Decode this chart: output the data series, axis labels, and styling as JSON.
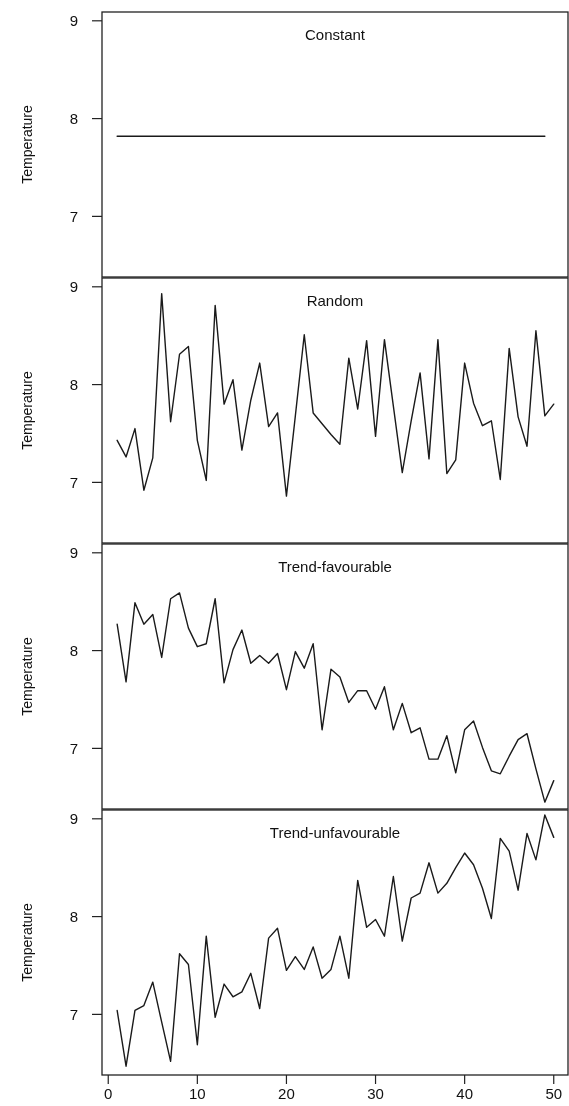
{
  "chart_data": [
    {
      "type": "line",
      "title": "Constant",
      "ylabel": "Temperature",
      "x": [
        1,
        49
      ],
      "series": [
        {
          "color": "#1a1a1a",
          "values": [
            7.82,
            7.82
          ]
        }
      ],
      "xlim": [
        -0.7,
        51.6
      ],
      "ylim": [
        6.38,
        9.09
      ],
      "yticks": [
        7,
        8,
        9
      ],
      "tick_labels": "y"
    },
    {
      "type": "line",
      "title": "Random",
      "ylabel": "Temperature",
      "x": [
        1,
        2,
        3,
        4,
        5,
        6,
        7,
        8,
        9,
        10,
        11,
        12,
        13,
        14,
        15,
        16,
        17,
        18,
        19,
        20,
        21,
        22,
        23,
        24,
        25,
        26,
        27,
        28,
        29,
        30,
        31,
        32,
        33,
        34,
        35,
        36,
        37,
        38,
        39,
        40,
        41,
        42,
        43,
        44,
        45,
        46,
        47,
        48,
        49,
        50
      ],
      "series": [
        {
          "color": "#1a1a1a",
          "values": [
            7.43,
            7.26,
            7.55,
            6.92,
            7.25,
            8.93,
            7.62,
            8.31,
            8.39,
            7.43,
            7.02,
            8.81,
            7.8,
            8.05,
            7.33,
            7.84,
            8.22,
            7.57,
            7.71,
            6.86,
            7.68,
            8.51,
            7.71,
            7.6,
            7.49,
            7.39,
            8.27,
            7.75,
            8.45,
            7.47,
            8.46,
            7.78,
            7.1,
            7.63,
            8.12,
            7.24,
            8.46,
            7.09,
            7.23,
            8.22,
            7.81,
            7.58,
            7.63,
            7.03,
            8.37,
            7.67,
            7.37,
            8.55,
            7.68,
            7.8
          ]
        }
      ],
      "xlim": [
        -0.7,
        51.6
      ],
      "ylim": [
        6.38,
        9.09
      ],
      "yticks": [
        7,
        8,
        9
      ],
      "tick_labels": "y"
    },
    {
      "type": "line",
      "title": "Trend-favourable",
      "ylabel": "Temperature",
      "x": [
        1,
        2,
        3,
        4,
        5,
        6,
        7,
        8,
        9,
        10,
        11,
        12,
        13,
        14,
        15,
        16,
        17,
        18,
        19,
        20,
        21,
        22,
        23,
        24,
        25,
        26,
        27,
        28,
        29,
        30,
        31,
        32,
        33,
        34,
        35,
        36,
        37,
        38,
        39,
        40,
        41,
        42,
        43,
        44,
        45,
        46,
        47,
        48,
        49,
        50
      ],
      "series": [
        {
          "color": "#1a1a1a",
          "values": [
            8.27,
            7.68,
            8.49,
            8.27,
            8.37,
            7.93,
            8.53,
            8.59,
            8.23,
            8.04,
            8.07,
            8.53,
            7.67,
            8.01,
            8.21,
            7.87,
            7.95,
            7.87,
            7.97,
            7.6,
            7.99,
            7.82,
            8.07,
            7.19,
            7.81,
            7.73,
            7.47,
            7.59,
            7.59,
            7.4,
            7.63,
            7.19,
            7.46,
            7.16,
            7.21,
            6.89,
            6.89,
            7.13,
            6.75,
            7.19,
            7.28,
            7.01,
            6.77,
            6.74,
            6.92,
            7.09,
            7.15,
            6.79,
            6.45,
            6.67
          ]
        }
      ],
      "xlim": [
        -0.7,
        51.6
      ],
      "ylim": [
        6.38,
        9.09
      ],
      "yticks": [
        7,
        8,
        9
      ],
      "tick_labels": "y"
    },
    {
      "type": "line",
      "title": "Trend-unfavourable",
      "ylabel": "Temperature",
      "x": [
        1,
        2,
        3,
        4,
        5,
        6,
        7,
        8,
        9,
        10,
        11,
        12,
        13,
        14,
        15,
        16,
        17,
        18,
        19,
        20,
        21,
        22,
        23,
        24,
        25,
        26,
        27,
        28,
        29,
        30,
        31,
        32,
        33,
        34,
        35,
        36,
        37,
        38,
        39,
        40,
        41,
        42,
        43,
        44,
        45,
        46,
        47,
        48,
        49,
        50
      ],
      "series": [
        {
          "color": "#1a1a1a",
          "values": [
            7.04,
            6.47,
            7.04,
            7.09,
            7.33,
            6.92,
            6.52,
            7.62,
            7.51,
            6.69,
            7.8,
            6.97,
            7.31,
            7.18,
            7.23,
            7.42,
            7.06,
            7.78,
            7.88,
            7.45,
            7.59,
            7.46,
            7.69,
            7.37,
            7.46,
            7.8,
            7.37,
            8.37,
            7.89,
            7.97,
            7.8,
            8.41,
            7.75,
            8.19,
            8.24,
            8.55,
            8.24,
            8.34,
            8.5,
            8.65,
            8.53,
            8.29,
            7.98,
            8.8,
            8.67,
            8.27,
            8.85,
            8.58,
            9.04,
            8.81
          ]
        }
      ],
      "xlim": [
        -0.7,
        51.6
      ],
      "xticks": [
        0,
        10,
        20,
        30,
        40,
        50
      ],
      "ylim": [
        6.38,
        9.09
      ],
      "yticks": [
        7,
        8,
        9
      ]
    }
  ]
}
